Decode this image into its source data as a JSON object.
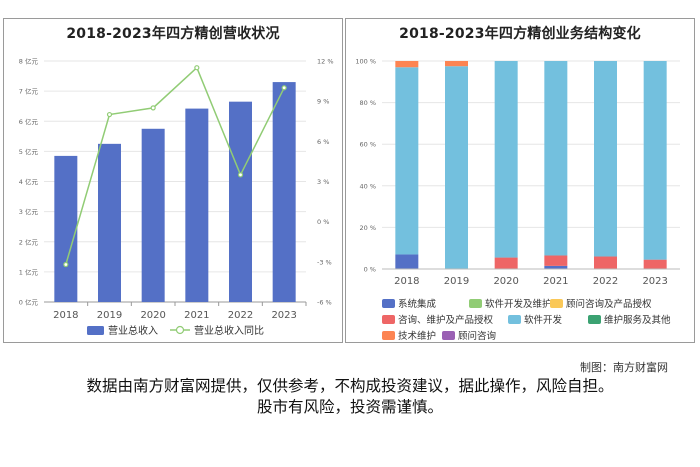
{
  "chart_data": [
    {
      "type": "bar",
      "title": "2018-2023年四方精创营收状况",
      "categories": [
        "2018",
        "2019",
        "2020",
        "2021",
        "2022",
        "2023"
      ],
      "left_axis": {
        "ticks": [
          "0 亿元",
          "1 亿元",
          "2 亿元",
          "3 亿元",
          "4 亿元",
          "5 亿元",
          "6 亿元",
          "7 亿元",
          "8 亿元"
        ],
        "ylim": [
          0,
          8
        ]
      },
      "right_axis": {
        "ticks": [
          "-6 %",
          "-3 %",
          "0 %",
          "3 %",
          "6 %",
          "9 %",
          "12 %"
        ],
        "ylim": [
          -6,
          12
        ]
      },
      "series": [
        {
          "name": "营业总收入",
          "type": "bar",
          "axis": "left",
          "color": "#5470c6",
          "values": [
            4.85,
            5.25,
            5.75,
            6.42,
            6.65,
            7.3
          ]
        },
        {
          "name": "营业总收入同比",
          "type": "line",
          "axis": "right",
          "color": "#91cc75",
          "values": [
            -3.2,
            8.0,
            8.5,
            11.5,
            3.5,
            10.0
          ]
        }
      ],
      "legend_position": "bottom"
    },
    {
      "type": "bar",
      "stacked": true,
      "title": "2018-2023年四方精创业务结构变化",
      "categories": [
        "2018",
        "2019",
        "2020",
        "2021",
        "2022",
        "2023"
      ],
      "y_ticks": [
        "0 %",
        "20 %",
        "40 %",
        "60 %",
        "80 %",
        "100 %"
      ],
      "ylim": [
        0,
        100
      ],
      "series": [
        {
          "name": "系统集成",
          "color": "#5470c6",
          "values": [
            7,
            0,
            0,
            1.5,
            0,
            0
          ]
        },
        {
          "name": "软件开发及维护",
          "color": "#91cc75",
          "values": [
            0,
            0,
            0,
            0,
            0,
            0
          ]
        },
        {
          "name": "顾问咨询及产品授权",
          "color": "#fac858",
          "values": [
            0,
            0,
            0,
            0,
            0,
            0
          ]
        },
        {
          "name": "咨询、维护及产品授权",
          "color": "#ee6666",
          "values": [
            0,
            0,
            5.5,
            5,
            6,
            4.5
          ]
        },
        {
          "name": "软件开发",
          "color": "#73c0de",
          "values": [
            90,
            97.5,
            94.5,
            93.5,
            94,
            95.5
          ]
        },
        {
          "name": "维护服务及其他",
          "color": "#3ba272",
          "values": [
            0,
            0,
            0,
            0,
            0,
            0
          ]
        },
        {
          "name": "技术维护",
          "color": "#fc8452",
          "values": [
            3,
            2.5,
            0,
            0,
            0,
            0
          ]
        },
        {
          "name": "顾问咨询",
          "color": "#9a60b4",
          "values": [
            0,
            0,
            0,
            0,
            0,
            0
          ]
        }
      ],
      "legend_position": "bottom"
    }
  ],
  "footer": {
    "credit": "制图：南方财富网",
    "disclaimer_line1": "数据由南方财富网提供，仅供参考，不构成投资建议，据此操作，风险自担。",
    "disclaimer_line2": "股市有风险，投资需谨慎。"
  }
}
